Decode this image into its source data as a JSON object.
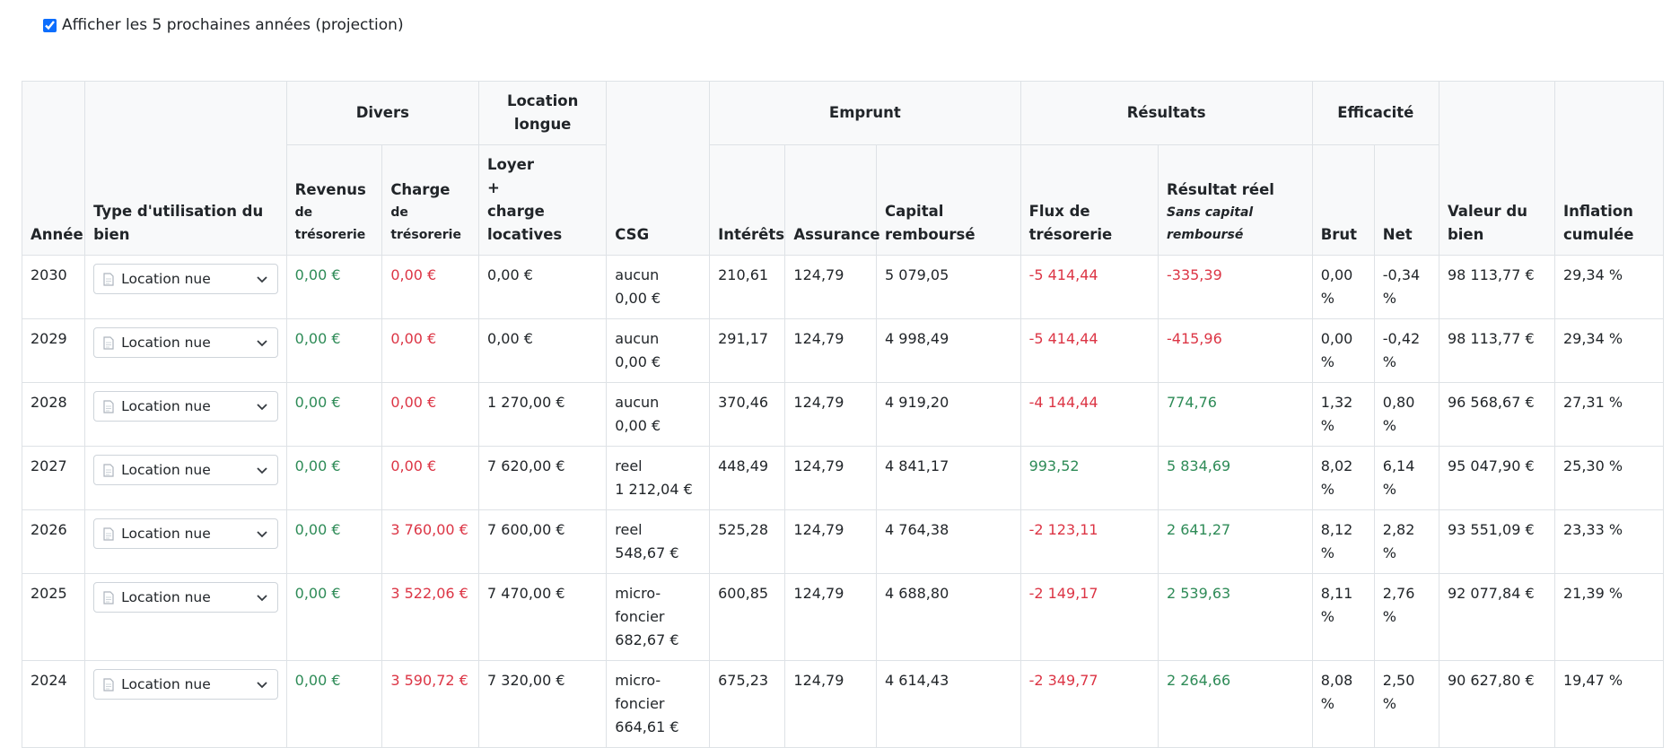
{
  "checkbox": {
    "label": "Afficher les 5 prochaines années (projection)",
    "checked": true
  },
  "table": {
    "headers": {
      "annee": "Année",
      "usage": "Type d'utilisation du bien",
      "divers": "Divers",
      "revenus": {
        "label": "Revenus",
        "sub": "de trésorerie"
      },
      "charge": {
        "label": "Charge",
        "sub": "de trésorerie"
      },
      "location_longue": "Location longue",
      "loyer": [
        "Loyer",
        "+",
        "charge locatives"
      ],
      "csg": "CSG",
      "emprunt": "Emprunt",
      "interets": "Intérêts",
      "assurance": "Assurance",
      "capital": "Capital remboursé",
      "resultats": "Résultats",
      "flux": "Flux de trésorerie",
      "resultat": {
        "label": "Résultat réel",
        "sub": "Sans capital remboursé"
      },
      "efficacite": "Efficacité",
      "brut": "Brut",
      "net": "Net",
      "valeur": "Valeur du bien",
      "inflation": "Inflation cumulée"
    },
    "rows": [
      {
        "annee": "2030",
        "usage": "Location nue",
        "revenus": "0,00 €",
        "charge": "0,00 €",
        "loyer": "0,00 €",
        "csg_regime": "aucun",
        "csg_montant": "0,00 €",
        "interets": "210,61",
        "assurance": "124,79",
        "capital": "5 079,05",
        "flux": "-5 414,44",
        "resultat": "-335,39",
        "brut": "0,00 %",
        "net": "-0,34 %",
        "valeur": "98 113,77 €",
        "inflation": "29,34 %"
      },
      {
        "annee": "2029",
        "usage": "Location nue",
        "revenus": "0,00 €",
        "charge": "0,00 €",
        "loyer": "0,00 €",
        "csg_regime": "aucun",
        "csg_montant": "0,00 €",
        "interets": "291,17",
        "assurance": "124,79",
        "capital": "4 998,49",
        "flux": "-5 414,44",
        "resultat": "-415,96",
        "brut": "0,00 %",
        "net": "-0,42 %",
        "valeur": "98 113,77 €",
        "inflation": "29,34 %"
      },
      {
        "annee": "2028",
        "usage": "Location nue",
        "revenus": "0,00 €",
        "charge": "0,00 €",
        "loyer": "1 270,00 €",
        "csg_regime": "aucun",
        "csg_montant": "0,00 €",
        "interets": "370,46",
        "assurance": "124,79",
        "capital": "4 919,20",
        "flux": "-4 144,44",
        "resultat": "774,76",
        "brut": "1,32 %",
        "net": "0,80 %",
        "valeur": "96 568,67 €",
        "inflation": "27,31 %"
      },
      {
        "annee": "2027",
        "usage": "Location nue",
        "revenus": "0,00 €",
        "charge": "0,00 €",
        "loyer": "7 620,00 €",
        "csg_regime": "reel",
        "csg_montant": "1 212,04 €",
        "interets": "448,49",
        "assurance": "124,79",
        "capital": "4 841,17",
        "flux": "993,52",
        "resultat": "5 834,69",
        "brut": "8,02 %",
        "net": "6,14 %",
        "valeur": "95 047,90 €",
        "inflation": "25,30 %"
      },
      {
        "annee": "2026",
        "usage": "Location nue",
        "revenus": "0,00 €",
        "charge": "3 760,00 €",
        "loyer": "7 600,00 €",
        "csg_regime": "reel",
        "csg_montant": "548,67 €",
        "interets": "525,28",
        "assurance": "124,79",
        "capital": "4 764,38",
        "flux": "-2 123,11",
        "resultat": "2 641,27",
        "brut": "8,12 %",
        "net": "2,82 %",
        "valeur": "93 551,09 €",
        "inflation": "23,33 %"
      },
      {
        "annee": "2025",
        "usage": "Location nue",
        "revenus": "0,00 €",
        "charge": "3 522,06 €",
        "loyer": "7 470,00 €",
        "csg_regime": "micro-foncier",
        "csg_montant": "682,67 €",
        "interets": "600,85",
        "assurance": "124,79",
        "capital": "4 688,80",
        "flux": "-2 149,17",
        "resultat": "2 539,63",
        "brut": "8,11 %",
        "net": "2,76 %",
        "valeur": "92 077,84 €",
        "inflation": "21,39 %"
      },
      {
        "annee": "2024",
        "usage": "Location nue",
        "revenus": "0,00 €",
        "charge": "3 590,72 €",
        "loyer": "7 320,00 €",
        "csg_regime": "micro-foncier",
        "csg_montant": "664,61 €",
        "interets": "675,23",
        "assurance": "124,79",
        "capital": "4 614,43",
        "flux": "-2 349,77",
        "resultat": "2 264,66",
        "brut": "8,08 %",
        "net": "2,50 %",
        "valeur": "90 627,80 €",
        "inflation": "19,47 %"
      }
    ]
  }
}
